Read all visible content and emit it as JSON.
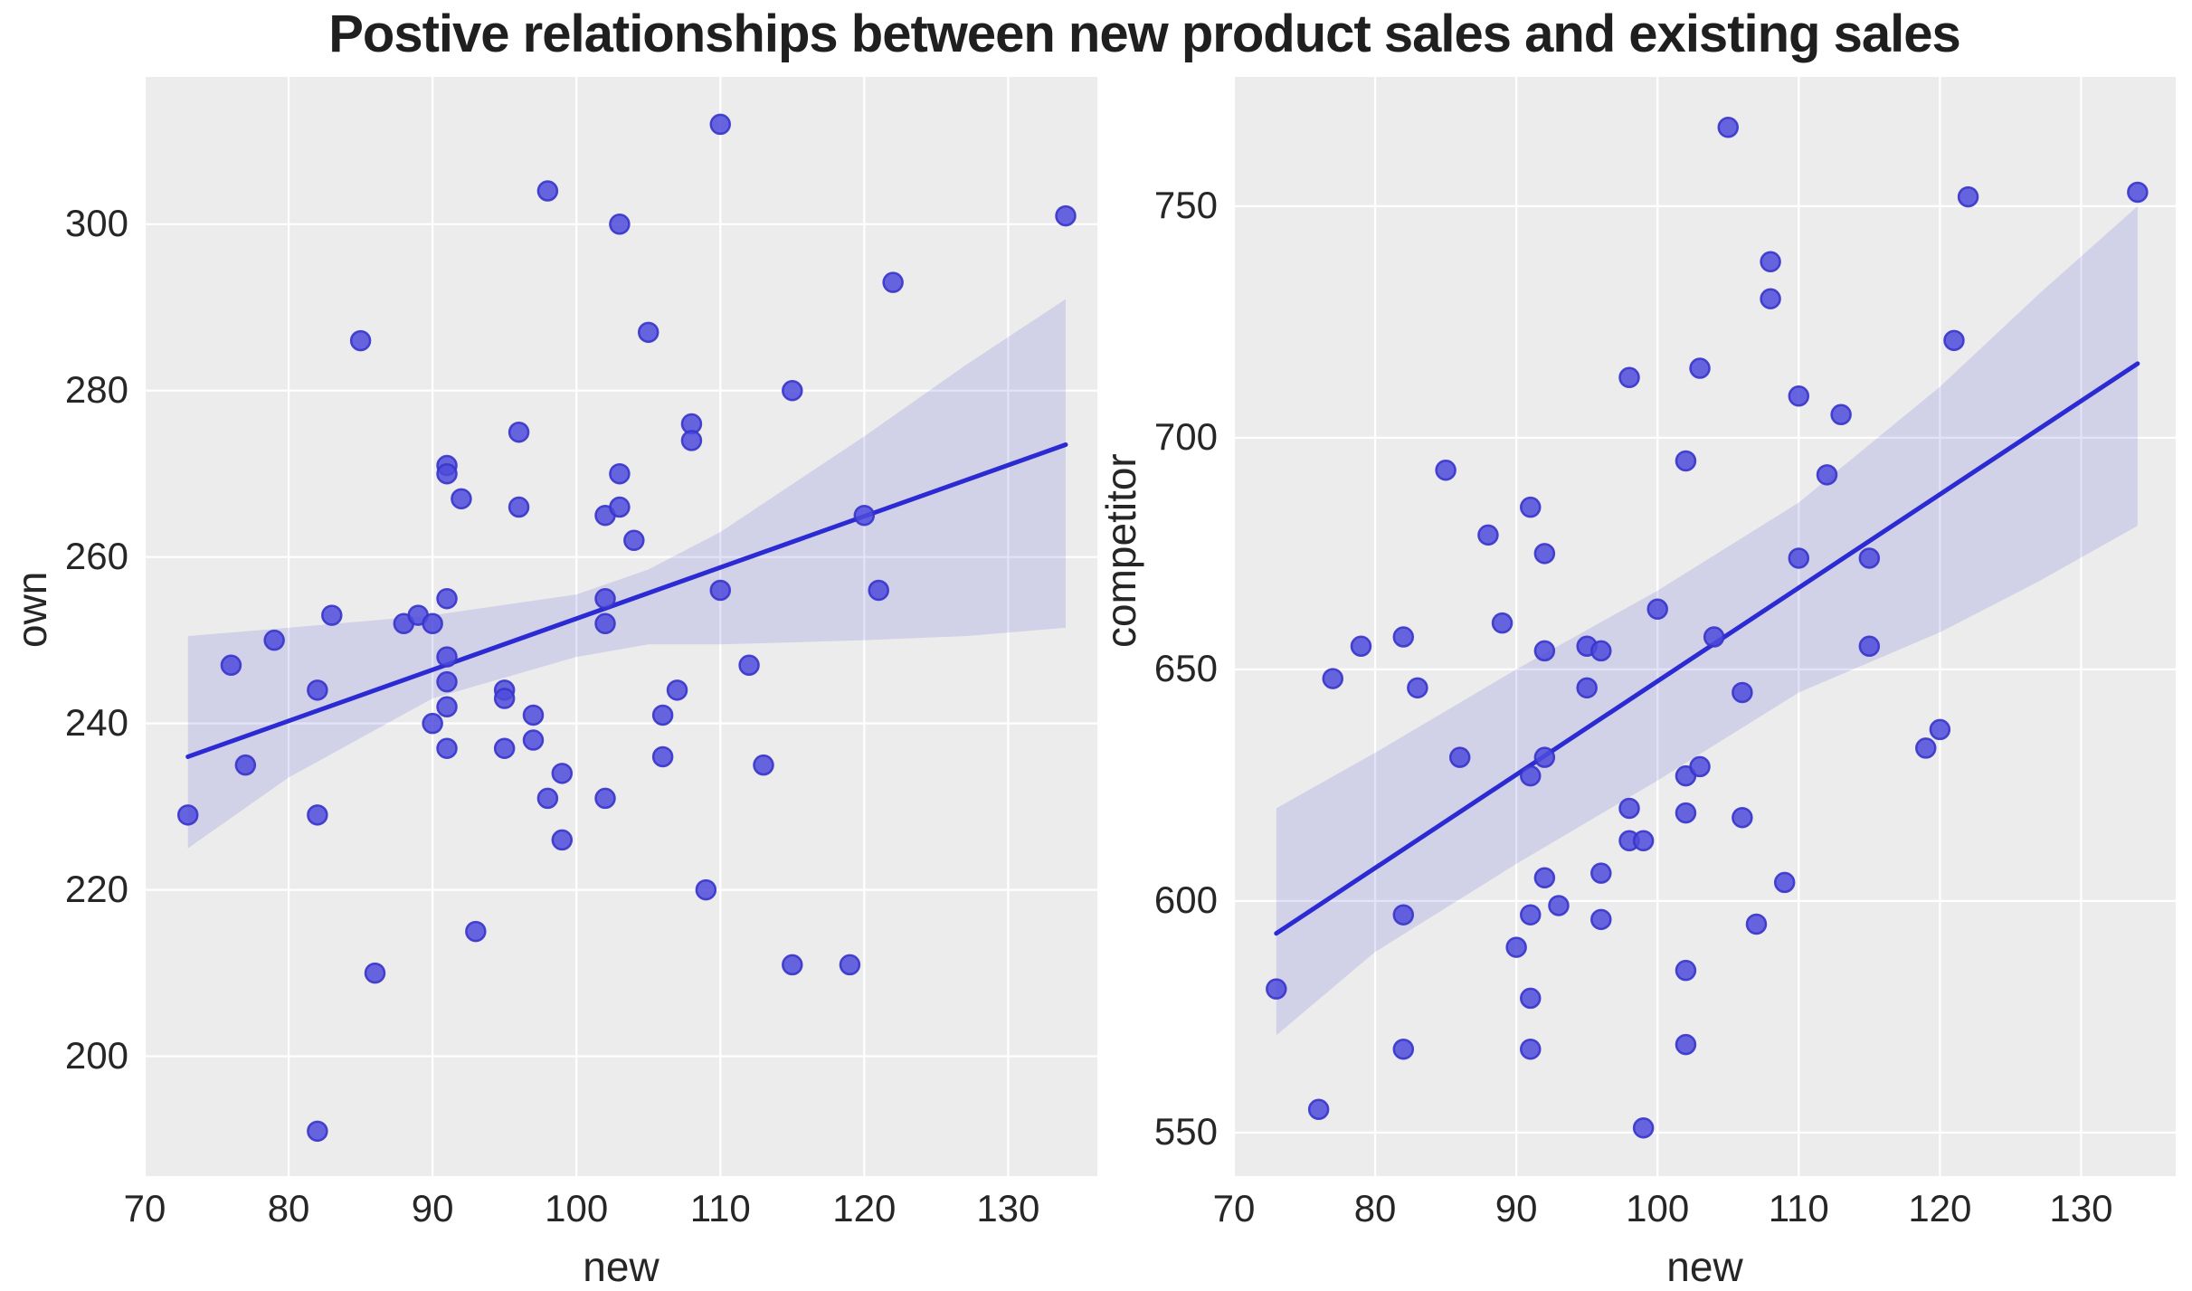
{
  "title": "Postive relationships between new product sales and existing sales",
  "style": {
    "figure_bg": "#ffffff",
    "axes_bg": "#ececec",
    "grid_color": "#ffffff",
    "point_fill": "#4d4bdc",
    "point_edge": "#3734cb",
    "line_color": "#2b2ad3",
    "band_color": "#3c3ad1",
    "band_opacity": 0.15,
    "text_color": "#262626"
  },
  "chart_data": [
    {
      "name": "own-vs-new",
      "type": "scatter",
      "title": "",
      "xlabel": "new",
      "ylabel": "own",
      "xlim": [
        70,
        136.2
      ],
      "ylim": [
        185.6,
        317.7
      ],
      "xticks": [
        70,
        80,
        90,
        100,
        110,
        120,
        130
      ],
      "yticks": [
        200,
        220,
        240,
        260,
        280,
        300
      ],
      "grid": true,
      "legend": "none",
      "points": [
        [
          73,
          229
        ],
        [
          76,
          247
        ],
        [
          77,
          235
        ],
        [
          79,
          250
        ],
        [
          82,
          244
        ],
        [
          82,
          229
        ],
        [
          82,
          191
        ],
        [
          83,
          253
        ],
        [
          85,
          286
        ],
        [
          86,
          210
        ],
        [
          88,
          252
        ],
        [
          89,
          253
        ],
        [
          90,
          252
        ],
        [
          90,
          240
        ],
        [
          91,
          271
        ],
        [
          91,
          270
        ],
        [
          91,
          255
        ],
        [
          91,
          248
        ],
        [
          91,
          245
        ],
        [
          91,
          242
        ],
        [
          91,
          237
        ],
        [
          92,
          267
        ],
        [
          93,
          215
        ],
        [
          95,
          244
        ],
        [
          95,
          243
        ],
        [
          95,
          237
        ],
        [
          96,
          275
        ],
        [
          96,
          266
        ],
        [
          97,
          241
        ],
        [
          97,
          238
        ],
        [
          98,
          304
        ],
        [
          98,
          231
        ],
        [
          99,
          234
        ],
        [
          99,
          226
        ],
        [
          102,
          265
        ],
        [
          102,
          255
        ],
        [
          102,
          252
        ],
        [
          102,
          231
        ],
        [
          103,
          300
        ],
        [
          103,
          270
        ],
        [
          103,
          266
        ],
        [
          104,
          262
        ],
        [
          105,
          287
        ],
        [
          106,
          241
        ],
        [
          106,
          236
        ],
        [
          107,
          244
        ],
        [
          108,
          276
        ],
        [
          108,
          274
        ],
        [
          109,
          220
        ],
        [
          110,
          312
        ],
        [
          110,
          256
        ],
        [
          112,
          247
        ],
        [
          113,
          235
        ],
        [
          115,
          280
        ],
        [
          115,
          211
        ],
        [
          119,
          211
        ],
        [
          120,
          265
        ],
        [
          121,
          256
        ],
        [
          122,
          293
        ],
        [
          134,
          301
        ]
      ],
      "regression_line": {
        "x": [
          73,
          134
        ],
        "y": [
          236,
          273.5
        ]
      },
      "ci_band": {
        "x": [
          73,
          80,
          90,
          100,
          105,
          110,
          120,
          127,
          134
        ],
        "lo": [
          225,
          233.5,
          243,
          248,
          249.5,
          249.5,
          250,
          250.5,
          251.5
        ],
        "hi": [
          250.5,
          251.5,
          253,
          255.5,
          258.5,
          263,
          274.5,
          283,
          291
        ]
      }
    },
    {
      "name": "competitor-vs-new",
      "type": "scatter",
      "title": "",
      "xlabel": "new",
      "ylabel": "competitor",
      "xlim": [
        70,
        136.7
      ],
      "ylim": [
        540.6,
        777.9
      ],
      "xticks": [
        70,
        80,
        90,
        100,
        110,
        120,
        130
      ],
      "yticks": [
        550,
        600,
        650,
        700,
        750
      ],
      "grid": true,
      "legend": "none",
      "points": [
        [
          73,
          581
        ],
        [
          76,
          555
        ],
        [
          77,
          648
        ],
        [
          79,
          655
        ],
        [
          82,
          657
        ],
        [
          82,
          597
        ],
        [
          82,
          568
        ],
        [
          83,
          646
        ],
        [
          85,
          693
        ],
        [
          86,
          631
        ],
        [
          88,
          679
        ],
        [
          89,
          660
        ],
        [
          90,
          590
        ],
        [
          91,
          685
        ],
        [
          91,
          627
        ],
        [
          91,
          597
        ],
        [
          91,
          579
        ],
        [
          91,
          568
        ],
        [
          92,
          675
        ],
        [
          92,
          654
        ],
        [
          92,
          631
        ],
        [
          92,
          605
        ],
        [
          93,
          599
        ],
        [
          95,
          655
        ],
        [
          95,
          646
        ],
        [
          96,
          654
        ],
        [
          96,
          606
        ],
        [
          96,
          596
        ],
        [
          98,
          713
        ],
        [
          98,
          620
        ],
        [
          98,
          613
        ],
        [
          99,
          613
        ],
        [
          99,
          551
        ],
        [
          100,
          663
        ],
        [
          102,
          695
        ],
        [
          102,
          627
        ],
        [
          102,
          619
        ],
        [
          102,
          585
        ],
        [
          102,
          569
        ],
        [
          103,
          715
        ],
        [
          103,
          629
        ],
        [
          104,
          657
        ],
        [
          105,
          767
        ],
        [
          106,
          645
        ],
        [
          106,
          618
        ],
        [
          107,
          595
        ],
        [
          108,
          738
        ],
        [
          108,
          730
        ],
        [
          109,
          604
        ],
        [
          110,
          709
        ],
        [
          110,
          674
        ],
        [
          112,
          692
        ],
        [
          113,
          705
        ],
        [
          115,
          674
        ],
        [
          115,
          655
        ],
        [
          119,
          633
        ],
        [
          120,
          637
        ],
        [
          121,
          721
        ],
        [
          122,
          752
        ],
        [
          134,
          753
        ]
      ],
      "regression_line": {
        "x": [
          73,
          134
        ],
        "y": [
          593,
          716
        ]
      },
      "ci_band": {
        "x": [
          73,
          80,
          90,
          100,
          110,
          120,
          127,
          134
        ],
        "lo": [
          571,
          589,
          608,
          626,
          645,
          658,
          669,
          681
        ],
        "hi": [
          620,
          632,
          650,
          667,
          686,
          711,
          731,
          750
        ]
      }
    }
  ]
}
